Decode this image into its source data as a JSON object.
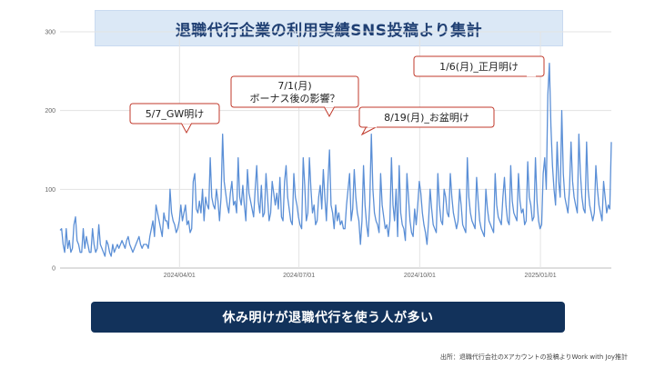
{
  "title": "退職代行企業の利用実績SNS投稿より集計",
  "conclusion": "休み明けが退職代行を使う人が多い",
  "source": "出所：退職代行会社のXアカウントの投稿よりWork with Joy推計",
  "colors": {
    "line": "#5b8fd6",
    "title_bg": "#dbe8f6",
    "title_text": "#1f3f73",
    "conclusion_bg": "#12325b",
    "callout_border": "#c0392b"
  },
  "chart_data": {
    "type": "line",
    "x_start": "2024-01-01",
    "x_end": "2025-02-24",
    "x_tick_labels": [
      "2024/04/01",
      "2024/07/01",
      "2024/10/01",
      "2025/01/01"
    ],
    "x_tick_dates": [
      "2024-04-01",
      "2024-07-01",
      "2024-10-01",
      "2025-01-01"
    ],
    "y_ticks": [
      0,
      100,
      200,
      300
    ],
    "ylim": [
      0,
      300
    ],
    "grid": "horizontal",
    "series": [
      {
        "name": "",
        "color": "#5b8fd6",
        "values": [
          48,
          50,
          30,
          20,
          50,
          25,
          35,
          20,
          25,
          55,
          65,
          35,
          30,
          20,
          20,
          50,
          25,
          40,
          30,
          20,
          20,
          50,
          30,
          20,
          25,
          55,
          30,
          25,
          20,
          15,
          35,
          30,
          20,
          15,
          30,
          20,
          25,
          30,
          25,
          30,
          35,
          30,
          25,
          35,
          40,
          30,
          25,
          20,
          25,
          30,
          35,
          40,
          30,
          25,
          30,
          30,
          30,
          25,
          40,
          50,
          60,
          40,
          80,
          70,
          60,
          50,
          40,
          70,
          60,
          60,
          50,
          100,
          70,
          60,
          55,
          45,
          50,
          60,
          80,
          60,
          70,
          80,
          55,
          60,
          45,
          50,
          110,
          120,
          75,
          70,
          85,
          70,
          100,
          60,
          90,
          80,
          75,
          140,
          90,
          80,
          75,
          100,
          85,
          60,
          90,
          170,
          110,
          95,
          80,
          70,
          95,
          110,
          80,
          85,
          70,
          140,
          90,
          80,
          105,
          80,
          60,
          125,
          95,
          85,
          75,
          65,
          100,
          130,
          85,
          70,
          105,
          65,
          70,
          120,
          90,
          60,
          70,
          110,
          95,
          80,
          95,
          75,
          115,
          65,
          60,
          110,
          130,
          90,
          75,
          60,
          55,
          120,
          90,
          80,
          65,
          55,
          50,
          140,
          105,
          60,
          70,
          140,
          100,
          70,
          80,
          55,
          60,
          90,
          105,
          75,
          125,
          90,
          60,
          110,
          150,
          80,
          70,
          50,
          80,
          60,
          70,
          55,
          60,
          50,
          50,
          80,
          100,
          120,
          60,
          75,
          125,
          90,
          70,
          60,
          30,
          60,
          130,
          80,
          55,
          40,
          80,
          170,
          100,
          70,
          60,
          55,
          45,
          120,
          80,
          65,
          50,
          55,
          40,
          60,
          140,
          80,
          60,
          100,
          40,
          130,
          70,
          55,
          50,
          35,
          120,
          90,
          60,
          45,
          40,
          75,
          55,
          80,
          110,
          95,
          70,
          55,
          45,
          30,
          60,
          100,
          75,
          55,
          50,
          45,
          120,
          80,
          60,
          55,
          100,
          90,
          70,
          65,
          120,
          90,
          70,
          60,
          50,
          60,
          100,
          80,
          55,
          50,
          45,
          140,
          90,
          70,
          60,
          55,
          50,
          115,
          85,
          60,
          50,
          45,
          40,
          100,
          75,
          60,
          55,
          50,
          45,
          120,
          80,
          65,
          60,
          55,
          90,
          115,
          80,
          60,
          55,
          130,
          85,
          70,
          65,
          60,
          120,
          85,
          70,
          75,
          55,
          60,
          135,
          90,
          80,
          60,
          65,
          140,
          85,
          60,
          50,
          55,
          120,
          140,
          100,
          220,
          260,
          180,
          130,
          100,
          80,
          160,
          110,
          90,
          200,
          120,
          90,
          80,
          70,
          100,
          160,
          110,
          90,
          80,
          70,
          170,
          120,
          90,
          75,
          70,
          160,
          100,
          80,
          70,
          60,
          70,
          130,
          100,
          80,
          70,
          60,
          110,
          90,
          70,
          80,
          75,
          160
        ]
      }
    ],
    "annotations": [
      {
        "text": "5/7_GW明け"
      },
      {
        "text": "7/1(月)",
        "text2": "ボーナス後の影響？"
      },
      {
        "text": "8/19(月)_お盆明け"
      },
      {
        "text": "1/6(月)_正月明け"
      }
    ]
  }
}
